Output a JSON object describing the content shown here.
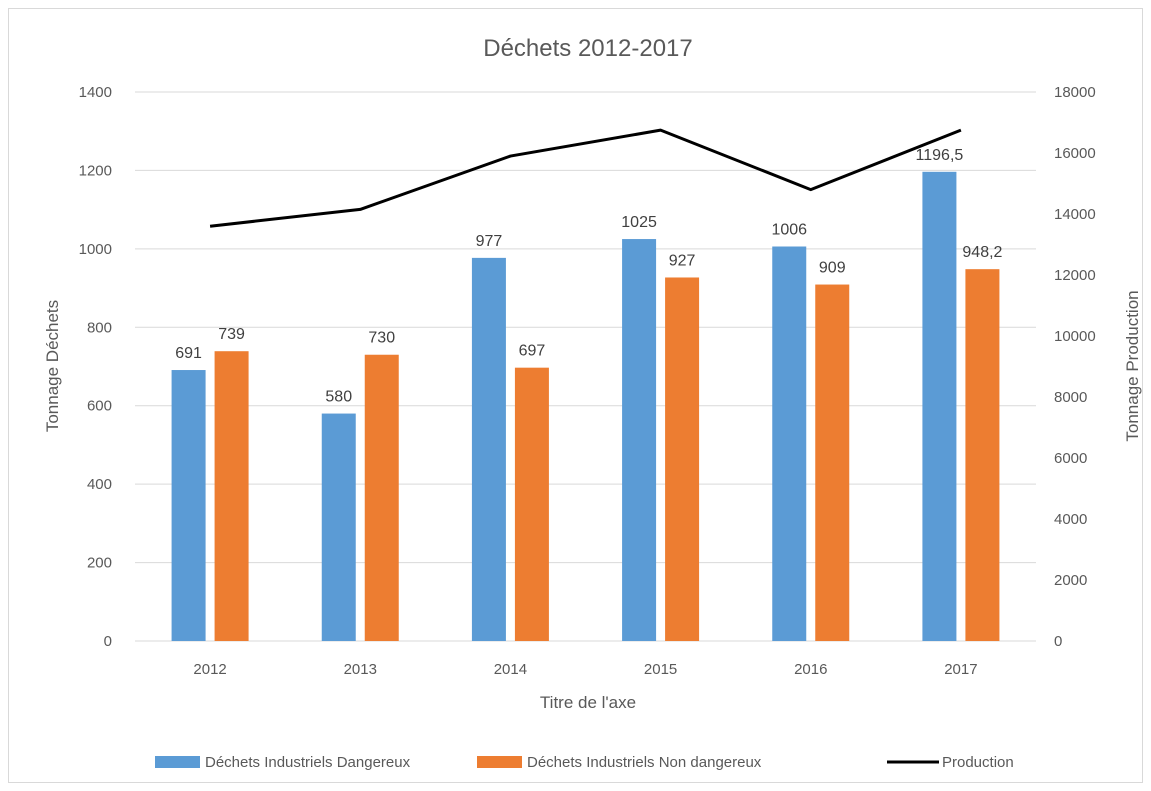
{
  "chart_data": {
    "type": "bar",
    "title": "Déchets 2012-2017",
    "xlabel": "Titre de l'axe",
    "ylabel": "Tonnage Déchets",
    "y2label": "Tonnage Production",
    "categories": [
      "2012",
      "2013",
      "2014",
      "2015",
      "2016",
      "2017"
    ],
    "ylim": [
      0,
      1400
    ],
    "y_ticks": [
      "0",
      "200",
      "400",
      "600",
      "800",
      "1000",
      "1200",
      "1400"
    ],
    "y2lim": [
      0,
      18000
    ],
    "y2_ticks": [
      "0",
      "2000",
      "4000",
      "6000",
      "8000",
      "10000",
      "12000",
      "14000",
      "16000",
      "18000"
    ],
    "grid": true,
    "legend_position": "bottom",
    "series": [
      {
        "name": "Déchets Industriels Dangereux",
        "type": "bar",
        "axis": "left",
        "color": "#5b9bd5",
        "values": [
          691,
          580,
          977,
          1025,
          1006,
          1196.5
        ],
        "labels": [
          "691",
          "580",
          "977",
          "1025",
          "1006",
          "1196,5"
        ]
      },
      {
        "name": "Déchets Industriels Non dangereux",
        "type": "bar",
        "axis": "left",
        "color": "#ed7d31",
        "values": [
          739,
          730,
          697,
          927,
          909,
          948.2
        ],
        "labels": [
          "739",
          "730",
          "697",
          "927",
          "909",
          "948,2"
        ]
      },
      {
        "name": "Production",
        "type": "line",
        "axis": "right",
        "color": "#000000",
        "values": [
          13600,
          14150,
          15900,
          16750,
          14800,
          16750
        ]
      }
    ]
  }
}
